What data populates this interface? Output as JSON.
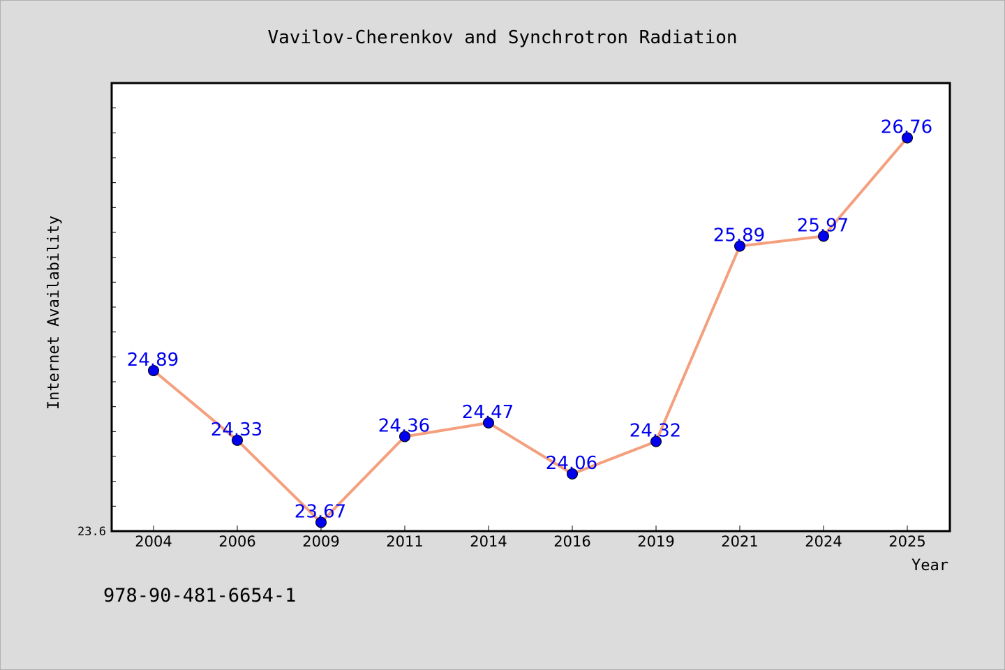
{
  "chart_data": {
    "type": "line",
    "title": "Vavilov-Cherenkov and Synchrotron Radiation",
    "xlabel": "Year",
    "ylabel": "Internet Availability",
    "categories": [
      "2004",
      "2006",
      "2009",
      "2011",
      "2014",
      "2016",
      "2019",
      "2021",
      "2024",
      "2025"
    ],
    "series": [
      {
        "values": [
          24.89,
          24.33,
          23.67,
          24.36,
          24.47,
          24.06,
          24.32,
          25.89,
          25.97,
          26.76
        ],
        "labels": [
          "24.89",
          "24.33",
          "23.67",
          "24.36",
          "24.47",
          "24.06",
          "24.32",
          "25.89",
          "25.97",
          "26.76"
        ],
        "line_color": "#f4a07e",
        "marker_color": "#0000ee",
        "label_color": "#0000ee"
      }
    ],
    "ylim": [
      23.6,
      27.2
    ],
    "yticks_labeled": [
      "23.6"
    ],
    "grid": false,
    "legend": "none"
  },
  "isbn": "978-90-481-6654-1",
  "colors": {
    "background": "#dcdcdc",
    "plot_background": "#ffffff",
    "frame": "#000000"
  }
}
